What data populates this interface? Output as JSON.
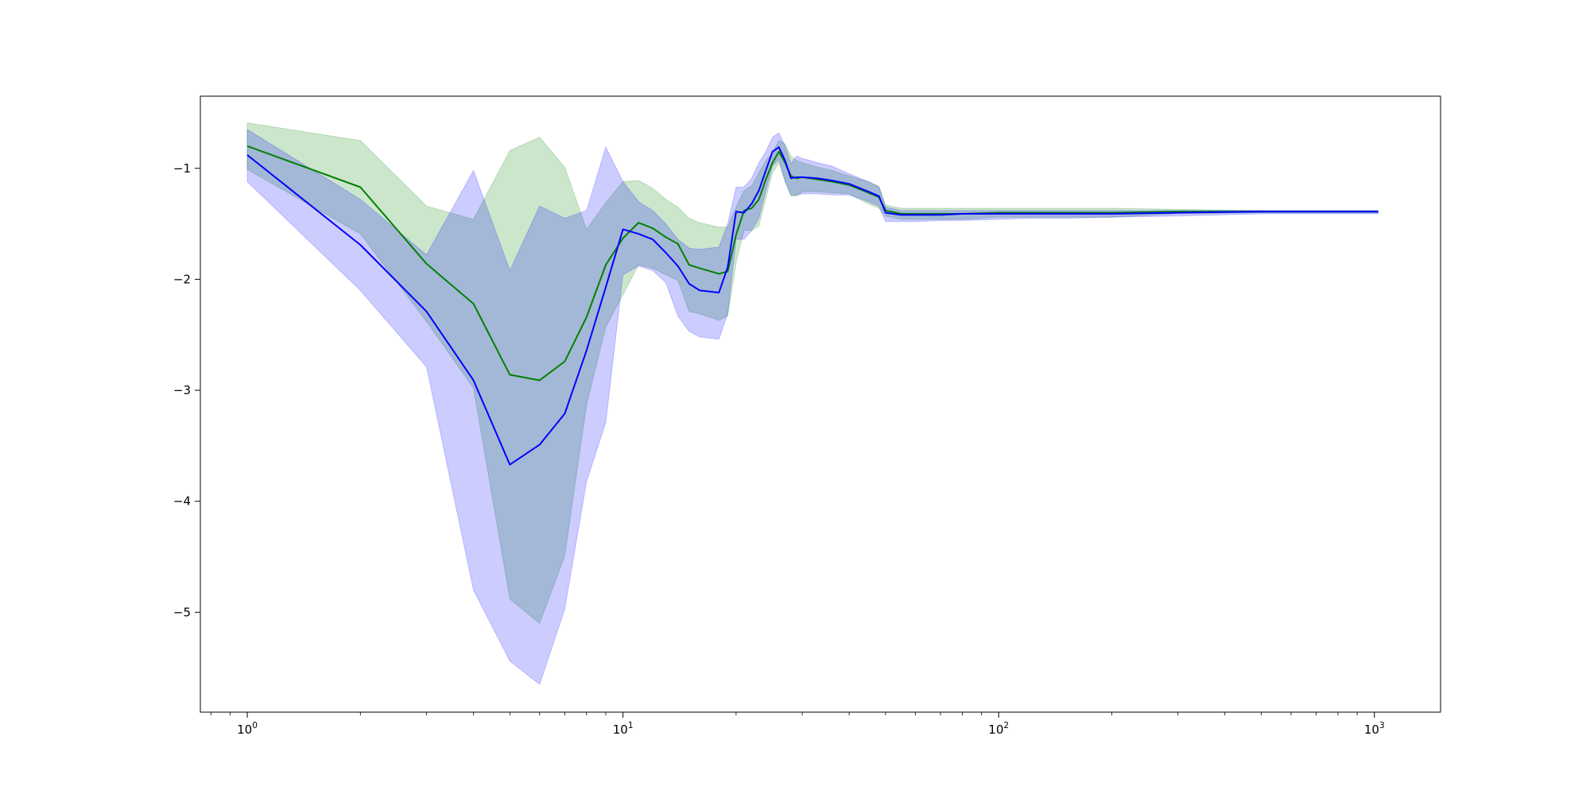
{
  "chart_data": {
    "type": "line",
    "title": "",
    "xlabel": "",
    "ylabel": "",
    "xscale": "log",
    "xlim": [
      0.75,
      1500
    ],
    "ylim": [
      -5.9,
      -0.35
    ],
    "xticks": [
      {
        "value": 1,
        "base": "10",
        "exp": "0"
      },
      {
        "value": 10,
        "base": "10",
        "exp": "1"
      },
      {
        "value": 100,
        "base": "10",
        "exp": "2"
      },
      {
        "value": 1000,
        "base": "10",
        "exp": "3"
      }
    ],
    "yticks": [
      {
        "value": -1,
        "label": "−1"
      },
      {
        "value": -2,
        "label": "−2"
      },
      {
        "value": -3,
        "label": "−3"
      },
      {
        "value": -4,
        "label": "−4"
      },
      {
        "value": -5,
        "label": "−5"
      }
    ],
    "grid": false,
    "legend": "none",
    "series": [
      {
        "color": "#008000",
        "fill_color": "#008000",
        "fill_opacity": 0.2,
        "x": [
          1,
          2,
          3,
          4,
          5,
          6,
          7,
          8,
          9,
          10,
          11,
          12,
          13,
          14,
          15,
          16,
          18,
          19,
          20,
          21,
          22,
          23,
          24,
          25,
          26,
          27,
          28,
          29,
          30,
          33,
          36,
          40,
          45,
          48,
          50,
          55,
          60,
          70,
          80,
          100,
          120,
          150,
          200,
          300,
          500,
          800,
          1023
        ],
        "y": [
          -0.8,
          -1.17,
          -1.86,
          -2.22,
          -2.86,
          -2.91,
          -2.74,
          -2.34,
          -1.87,
          -1.63,
          -1.49,
          -1.54,
          -1.62,
          -1.68,
          -1.87,
          -1.9,
          -1.95,
          -1.93,
          -1.6,
          -1.38,
          -1.36,
          -1.28,
          -1.1,
          -0.95,
          -0.85,
          -0.95,
          -1.07,
          -1.09,
          -1.08,
          -1.1,
          -1.12,
          -1.15,
          -1.22,
          -1.26,
          -1.38,
          -1.41,
          -1.41,
          -1.41,
          -1.41,
          -1.4,
          -1.4,
          -1.4,
          -1.4,
          -1.39,
          -1.39,
          -1.39,
          -1.39
        ],
        "upper": [
          -0.59,
          -0.75,
          -1.34,
          -1.46,
          -0.84,
          -0.72,
          -0.99,
          -1.55,
          -1.31,
          -1.12,
          -1.11,
          -1.18,
          -1.28,
          -1.35,
          -1.45,
          -1.49,
          -1.53,
          -1.53,
          -1.35,
          -1.2,
          -1.16,
          -1.04,
          -0.93,
          -0.86,
          -0.75,
          -0.78,
          -0.89,
          -0.93,
          -0.95,
          -0.99,
          -1.02,
          -1.07,
          -1.12,
          -1.16,
          -1.33,
          -1.36,
          -1.36,
          -1.36,
          -1.36,
          -1.36,
          -1.36,
          -1.36,
          -1.36,
          -1.37,
          -1.38,
          -1.38,
          -1.38
        ],
        "lower": [
          -1.01,
          -1.59,
          -2.38,
          -2.98,
          -4.88,
          -5.1,
          -4.49,
          -3.13,
          -2.43,
          -2.14,
          -1.87,
          -1.9,
          -1.96,
          -2.01,
          -2.29,
          -2.31,
          -2.37,
          -2.33,
          -1.85,
          -1.56,
          -1.56,
          -1.52,
          -1.27,
          -1.04,
          -0.95,
          -1.12,
          -1.25,
          -1.25,
          -1.21,
          -1.21,
          -1.22,
          -1.23,
          -1.32,
          -1.36,
          -1.43,
          -1.46,
          -1.46,
          -1.46,
          -1.46,
          -1.44,
          -1.44,
          -1.44,
          -1.44,
          -1.41,
          -1.4,
          -1.4,
          -1.4
        ]
      },
      {
        "color": "#0000ff",
        "fill_color": "#0000ff",
        "fill_opacity": 0.2,
        "x": [
          1,
          2,
          3,
          4,
          5,
          6,
          7,
          8,
          9,
          10,
          11,
          12,
          13,
          14,
          15,
          16,
          18,
          19,
          20,
          21,
          22,
          23,
          24,
          25,
          26,
          27,
          28,
          29,
          30,
          33,
          36,
          40,
          45,
          48,
          50,
          55,
          60,
          70,
          80,
          100,
          120,
          150,
          200,
          300,
          500,
          800,
          1023
        ],
        "y": [
          -0.88,
          -1.69,
          -2.29,
          -2.91,
          -3.67,
          -3.49,
          -3.21,
          -2.64,
          -2.07,
          -1.55,
          -1.59,
          -1.64,
          -1.76,
          -1.88,
          -2.04,
          -2.1,
          -2.12,
          -1.89,
          -1.39,
          -1.4,
          -1.32,
          -1.2,
          -1.02,
          -0.85,
          -0.81,
          -0.93,
          -1.09,
          -1.08,
          -1.08,
          -1.09,
          -1.11,
          -1.14,
          -1.21,
          -1.25,
          -1.4,
          -1.42,
          -1.42,
          -1.42,
          -1.41,
          -1.41,
          -1.41,
          -1.41,
          -1.41,
          -1.4,
          -1.39,
          -1.39,
          -1.39
        ],
        "upper": [
          -0.65,
          -1.28,
          -1.78,
          -1.02,
          -1.92,
          -1.34,
          -1.45,
          -1.38,
          -0.81,
          -1.12,
          -1.3,
          -1.38,
          -1.5,
          -1.64,
          -1.72,
          -1.73,
          -1.71,
          -1.5,
          -1.17,
          -1.17,
          -1.09,
          -0.95,
          -0.85,
          -0.72,
          -0.68,
          -0.8,
          -0.96,
          -0.89,
          -0.91,
          -0.95,
          -0.98,
          -1.05,
          -1.12,
          -1.17,
          -1.35,
          -1.38,
          -1.38,
          -1.38,
          -1.38,
          -1.38,
          -1.38,
          -1.38,
          -1.38,
          -1.38,
          -1.38,
          -1.38,
          -1.38
        ],
        "lower": [
          -1.12,
          -2.1,
          -2.79,
          -4.8,
          -5.44,
          -5.65,
          -4.97,
          -3.82,
          -3.29,
          -1.96,
          -1.88,
          -1.92,
          -2.03,
          -2.33,
          -2.47,
          -2.52,
          -2.54,
          -2.31,
          -1.64,
          -1.64,
          -1.56,
          -1.45,
          -1.2,
          -0.98,
          -0.92,
          -1.11,
          -1.24,
          -1.24,
          -1.23,
          -1.23,
          -1.24,
          -1.24,
          -1.3,
          -1.34,
          -1.48,
          -1.48,
          -1.48,
          -1.47,
          -1.47,
          -1.46,
          -1.45,
          -1.45,
          -1.44,
          -1.43,
          -1.41,
          -1.41,
          -1.41
        ]
      }
    ]
  }
}
